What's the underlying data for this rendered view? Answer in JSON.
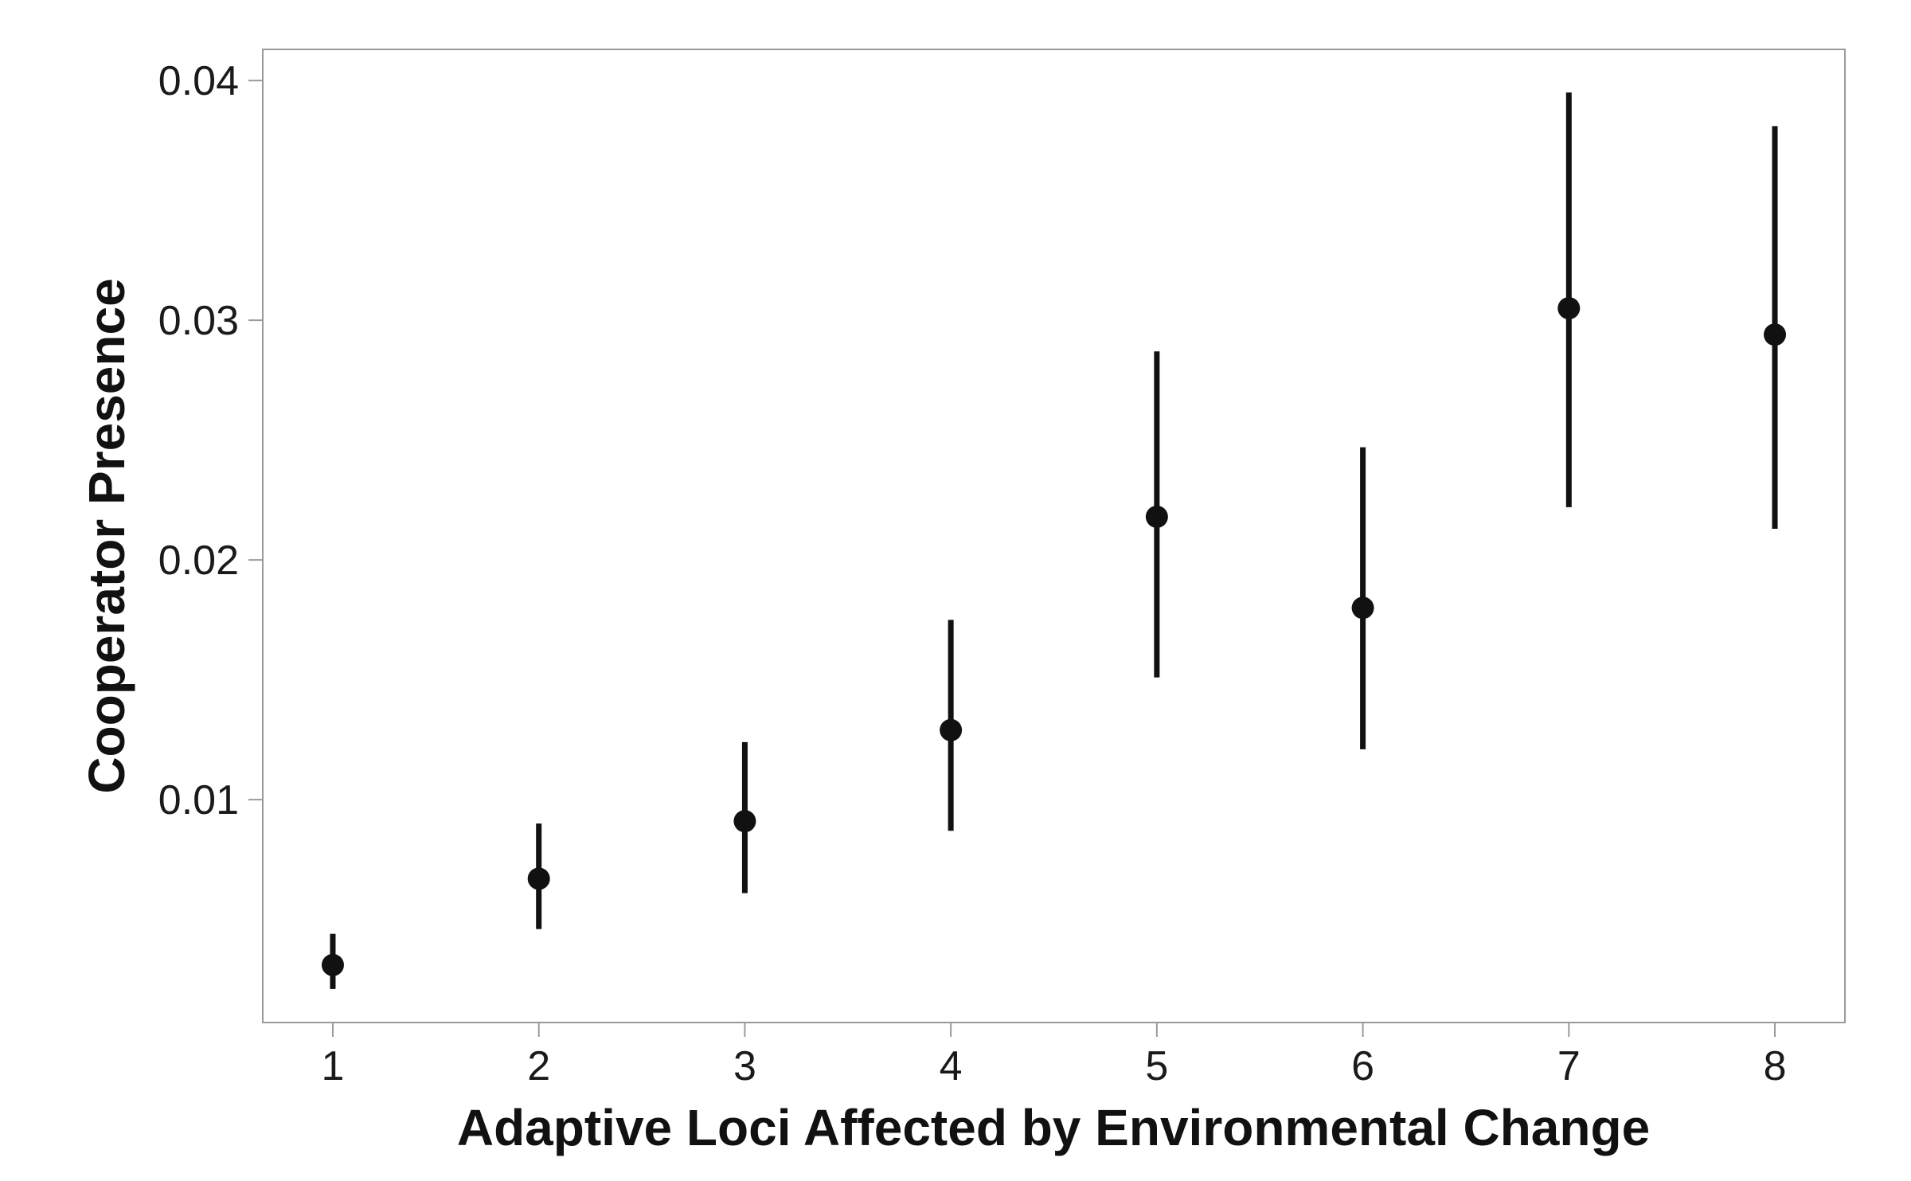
{
  "chart_data": {
    "type": "scatter",
    "title": "",
    "xlabel": "Adaptive Loci Affected by Environmental Change",
    "ylabel": "Cooperator Presence",
    "x_ticks": [
      "1",
      "2",
      "3",
      "4",
      "5",
      "6",
      "7",
      "8"
    ],
    "y_ticks": [
      "0.01",
      "0.02",
      "0.03",
      "0.04"
    ],
    "xlim": [
      0.66,
      8.34
    ],
    "ylim": [
      0.0007,
      0.0413
    ],
    "grid": false,
    "legend": "none",
    "marker_color": "#111111",
    "frame_color": "#9a9a9a",
    "series": [
      {
        "x": [
          1,
          2,
          3,
          4,
          5,
          6,
          7,
          8
        ],
        "y": [
          0.0031,
          0.0067,
          0.0091,
          0.0129,
          0.0218,
          0.018,
          0.0305,
          0.0294
        ],
        "lower": [
          0.0021,
          0.0046,
          0.0061,
          0.0087,
          0.0151,
          0.0121,
          0.0222,
          0.0213
        ],
        "upper": [
          0.0044,
          0.009,
          0.0124,
          0.0175,
          0.0287,
          0.0247,
          0.0395,
          0.0381
        ]
      }
    ]
  }
}
